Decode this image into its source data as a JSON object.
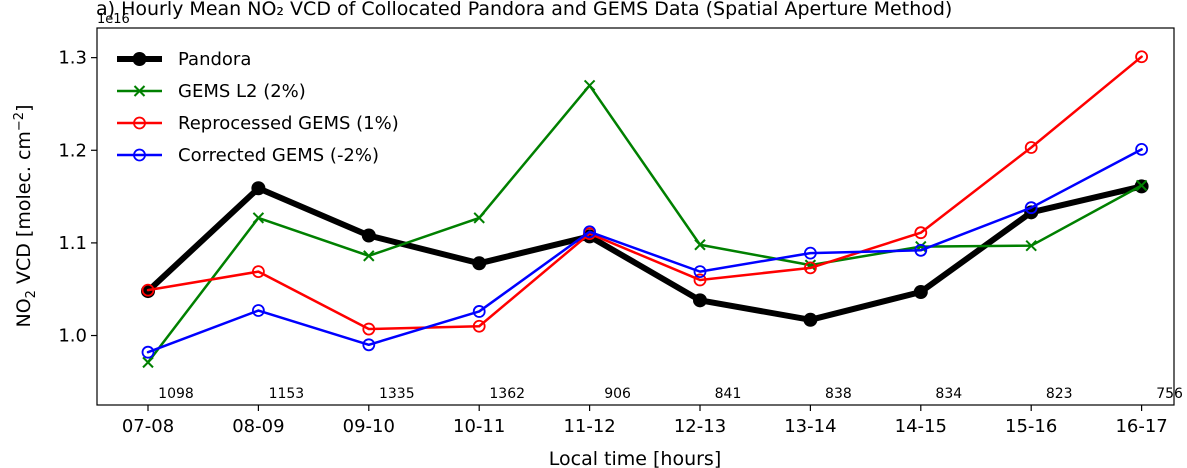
{
  "chart_data": {
    "type": "line",
    "title": "a) Hourly Mean NO₂ VCD of Collocated Pandora and GEMS Data (Spatial Aperture Method)",
    "scale_label": "1e16",
    "xlabel": "Local time [hours]",
    "ylabel_main": "NO",
    "ylabel_sub": "2",
    "ylabel_rest": " VCD [molec. cm",
    "ylabel_sup": "−2",
    "ylabel_end": "]",
    "categories": [
      "07-08",
      "08-09",
      "09-10",
      "10-11",
      "11-12",
      "12-13",
      "13-14",
      "14-15",
      "15-16",
      "16-17"
    ],
    "counts": [
      "1098",
      "1153",
      "1335",
      "1362",
      "906",
      "841",
      "838",
      "834",
      "823",
      "756"
    ],
    "ylim": [
      0.925,
      1.332
    ],
    "yticks": [
      1.0,
      1.1,
      1.2,
      1.3
    ],
    "ytick_labels": [
      "1.0",
      "1.1",
      "1.2",
      "1.3"
    ],
    "legend_position": "top-left",
    "series": [
      {
        "name": "Pandora",
        "color": "#000000",
        "marker": "filled-circle",
        "linewidth": 6,
        "values": [
          1.048,
          1.159,
          1.108,
          1.078,
          1.107,
          1.038,
          1.017,
          1.047,
          1.133,
          1.161
        ]
      },
      {
        "name": "GEMS L2 (2%)",
        "color": "#008000",
        "marker": "x",
        "linewidth": 2.5,
        "values": [
          0.971,
          1.127,
          1.086,
          1.127,
          1.27,
          1.098,
          1.076,
          1.096,
          1.097,
          1.162
        ]
      },
      {
        "name": "Reprocessed GEMS (1%)",
        "color": "#ff0000",
        "marker": "open-circle",
        "linewidth": 2.5,
        "values": [
          1.049,
          1.069,
          1.007,
          1.01,
          1.11,
          1.06,
          1.073,
          1.111,
          1.203,
          1.301
        ]
      },
      {
        "name": "Corrected GEMS (-2%)",
        "color": "#0000ff",
        "marker": "open-circle",
        "linewidth": 2.5,
        "values": [
          0.982,
          1.027,
          0.99,
          1.026,
          1.112,
          1.069,
          1.089,
          1.092,
          1.138,
          1.201
        ]
      }
    ]
  }
}
